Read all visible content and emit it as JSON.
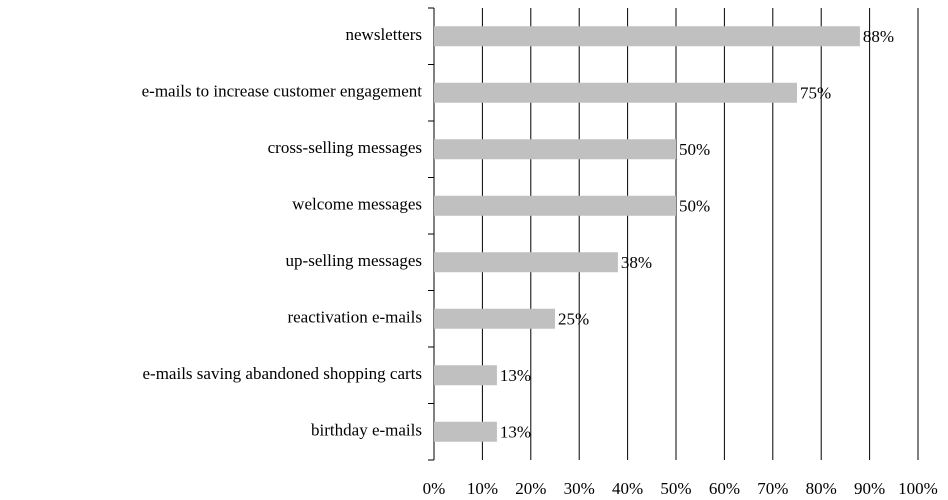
{
  "chart_data": {
    "type": "barh",
    "categories": [
      "newsletters",
      "e-mails to increase customer engagement",
      "cross-selling messages",
      "welcome messages",
      "up-selling messages",
      "reactivation e-mails",
      "e-mails saving abandoned shopping carts",
      "birthday e-mails"
    ],
    "values": [
      88,
      75,
      50,
      50,
      38,
      25,
      13,
      13
    ],
    "value_labels": [
      "88%",
      "75%",
      "50%",
      "50%",
      "38%",
      "25%",
      "13%",
      "13%"
    ],
    "color": "#c0c0c0",
    "xlim": [
      0,
      100
    ],
    "xticks": [
      {
        "value": 0,
        "label": "0%"
      },
      {
        "value": 10,
        "label": "10%"
      },
      {
        "value": 20,
        "label": "20%"
      },
      {
        "value": 30,
        "label": "30%"
      },
      {
        "value": 40,
        "label": "40%"
      },
      {
        "value": 50,
        "label": "50%"
      },
      {
        "value": 60,
        "label": "60%"
      },
      {
        "value": 70,
        "label": "70%"
      },
      {
        "value": 80,
        "label": "80%"
      },
      {
        "value": 90,
        "label": "90%"
      },
      {
        "value": 100,
        "label": "100%"
      }
    ],
    "grid": true
  }
}
